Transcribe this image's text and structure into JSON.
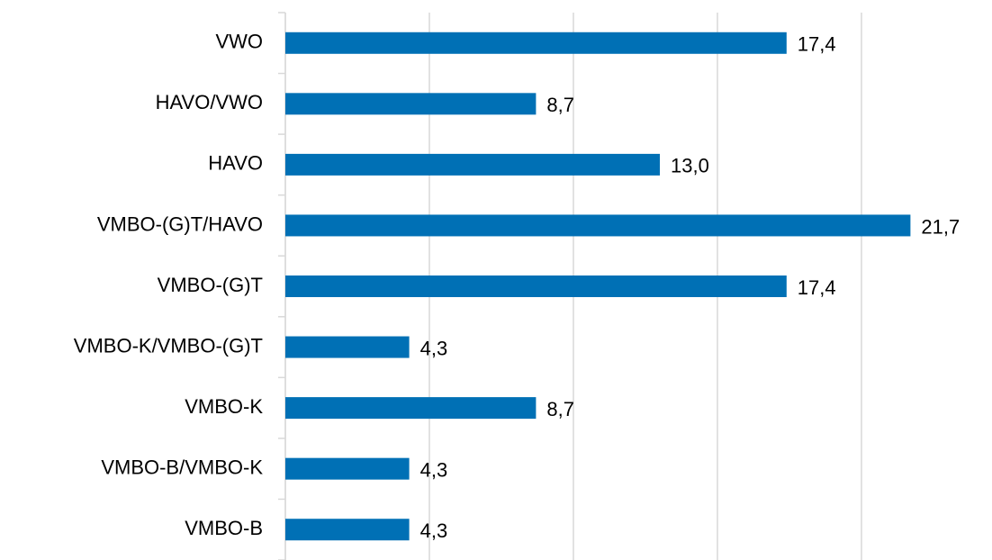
{
  "chart_data": {
    "type": "hbar",
    "categories": [
      "VWO",
      "HAVO/VWO",
      "HAVO",
      "VMBO-(G)T/HAVO",
      "VMBO-(G)T",
      "VMBO-K/VMBO-(G)T",
      "VMBO-K",
      "VMBO-B/VMBO-K",
      "VMBO-B"
    ],
    "values": [
      17.4,
      8.7,
      13.0,
      21.7,
      17.4,
      4.3,
      8.7,
      4.3,
      4.3
    ],
    "value_labels": [
      "17,4",
      "8,7",
      "13,0",
      "21,7",
      "17,4",
      "4,3",
      "8,7",
      "4,3",
      "4,3"
    ],
    "color": "#0070b5",
    "xlim": [
      0,
      24
    ],
    "xticks": [
      0,
      5,
      10,
      15,
      20
    ],
    "grid": true
  }
}
